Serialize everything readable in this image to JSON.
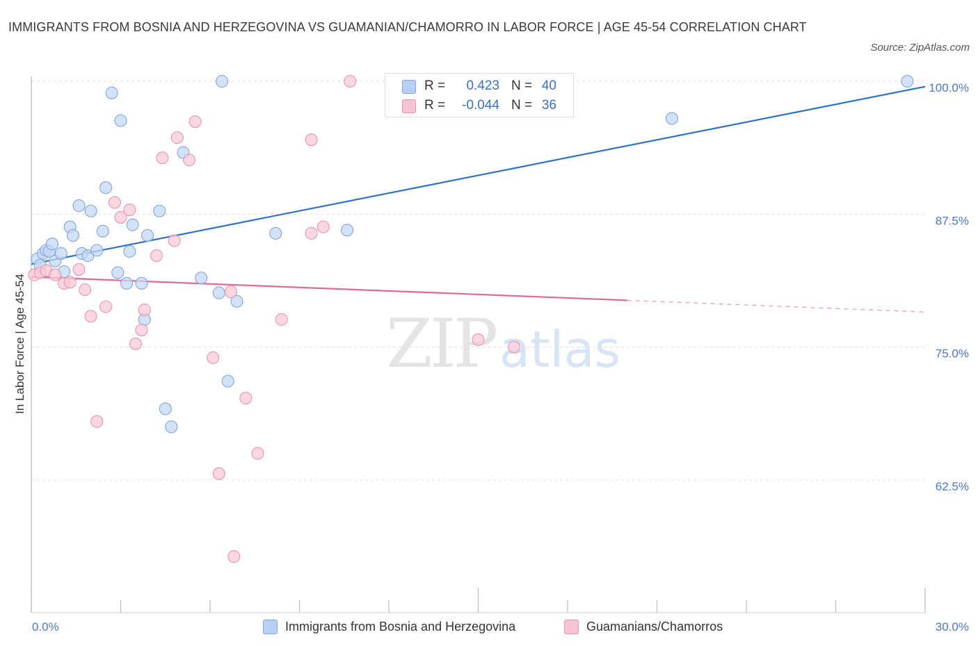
{
  "title": "IMMIGRANTS FROM BOSNIA AND HERZEGOVINA VS GUAMANIAN/CHAMORRO IN LABOR FORCE | AGE 45-54 CORRELATION CHART",
  "source": "Source: ZipAtlas.com",
  "watermark": {
    "zip": "ZIP",
    "atlas": "atlas"
  },
  "legend": {
    "rows": [
      {
        "r_label": "R =",
        "r_value": "0.423",
        "n_label": "N =",
        "n_value": "40",
        "color": "#b8d0f4",
        "border": "#7ea6e0"
      },
      {
        "r_label": "R =",
        "r_value": "-0.044",
        "n_label": "N =",
        "n_value": "36",
        "color": "#f7c4d3",
        "border": "#e894b0"
      }
    ]
  },
  "bottom_legend": [
    {
      "label": "Immigrants from Bosnia and Herzegovina",
      "color": "#b8d0f4",
      "border": "#7ea6e0"
    },
    {
      "label": "Guamanians/Chamorros",
      "color": "#f7c4d3",
      "border": "#e894b0"
    }
  ],
  "chart_data": {
    "type": "scatter",
    "title": "IMMIGRANTS FROM BOSNIA AND HERZEGOVINA VS GUAMANIAN/CHAMORRO IN LABOR FORCE | AGE 45-54 CORRELATION CHART",
    "xlabel": "",
    "ylabel": "In Labor Force | Age 45-54",
    "xlim": [
      0,
      30
    ],
    "ylim": [
      50,
      101
    ],
    "x_tick_labels": [
      "0.0%",
      "30.0%"
    ],
    "y_ticks": [
      62.5,
      75.0,
      87.5,
      100.0
    ],
    "y_tick_labels": [
      "62.5%",
      "75.0%",
      "87.5%",
      "100.0%"
    ],
    "grid": "horizontal dashed",
    "legend_position": "top-center",
    "series": [
      {
        "name": "Immigrants from Bosnia and Herzegovina",
        "color": "#7ea6e0",
        "fill": "#c5d8f5",
        "trend": {
          "x": [
            0,
            30
          ],
          "y": [
            82.8,
            99.5
          ],
          "color": "#2f6fcc",
          "style": "solid"
        },
        "points": [
          [
            0.2,
            83.3
          ],
          [
            0.3,
            82.7
          ],
          [
            0.4,
            83.8
          ],
          [
            0.5,
            84.1
          ],
          [
            0.6,
            84.0
          ],
          [
            0.7,
            84.7
          ],
          [
            0.8,
            83.1
          ],
          [
            1.0,
            83.8
          ],
          [
            1.1,
            82.1
          ],
          [
            1.3,
            86.3
          ],
          [
            1.4,
            85.5
          ],
          [
            1.6,
            88.3
          ],
          [
            1.7,
            83.8
          ],
          [
            1.9,
            83.6
          ],
          [
            2.0,
            87.8
          ],
          [
            2.2,
            84.1
          ],
          [
            2.4,
            85.9
          ],
          [
            2.5,
            90.0
          ],
          [
            2.7,
            98.9
          ],
          [
            2.9,
            82.0
          ],
          [
            3.0,
            96.3
          ],
          [
            3.2,
            81.0
          ],
          [
            3.3,
            84.0
          ],
          [
            3.4,
            86.5
          ],
          [
            3.7,
            81.0
          ],
          [
            3.8,
            77.6
          ],
          [
            3.9,
            85.5
          ],
          [
            4.3,
            87.8
          ],
          [
            4.5,
            69.2
          ],
          [
            4.7,
            67.5
          ],
          [
            5.1,
            93.3
          ],
          [
            5.7,
            81.5
          ],
          [
            6.3,
            80.1
          ],
          [
            6.4,
            100.0
          ],
          [
            6.6,
            71.8
          ],
          [
            6.9,
            79.3
          ],
          [
            8.2,
            85.7
          ],
          [
            10.6,
            86.0
          ],
          [
            21.5,
            96.5
          ],
          [
            29.4,
            100.0
          ]
        ]
      },
      {
        "name": "Guamanians/Chamorros",
        "color": "#e894b0",
        "fill": "#f8c9d7",
        "trend": {
          "x": [
            0,
            20
          ],
          "y": [
            81.6,
            79.4
          ],
          "color": "#e06a93",
          "style": "solid",
          "extension": {
            "x": [
              20,
              30
            ],
            "y": [
              79.4,
              78.3
            ],
            "style": "dashed"
          }
        },
        "points": [
          [
            0.1,
            81.8
          ],
          [
            0.3,
            82.0
          ],
          [
            0.5,
            82.2
          ],
          [
            0.8,
            81.8
          ],
          [
            1.1,
            81.0
          ],
          [
            1.3,
            81.1
          ],
          [
            1.6,
            82.3
          ],
          [
            1.8,
            80.4
          ],
          [
            2.0,
            77.9
          ],
          [
            2.2,
            68.0
          ],
          [
            2.5,
            78.8
          ],
          [
            2.8,
            88.6
          ],
          [
            3.0,
            87.2
          ],
          [
            3.3,
            87.9
          ],
          [
            3.5,
            75.3
          ],
          [
            3.7,
            76.6
          ],
          [
            3.8,
            78.5
          ],
          [
            4.2,
            83.6
          ],
          [
            4.4,
            92.8
          ],
          [
            4.8,
            85.0
          ],
          [
            4.9,
            94.7
          ],
          [
            5.3,
            92.6
          ],
          [
            5.5,
            96.2
          ],
          [
            6.1,
            74.0
          ],
          [
            6.3,
            63.1
          ],
          [
            6.7,
            80.2
          ],
          [
            6.8,
            55.3
          ],
          [
            7.2,
            70.2
          ],
          [
            7.6,
            65.0
          ],
          [
            8.4,
            77.6
          ],
          [
            9.4,
            85.7
          ],
          [
            9.4,
            94.5
          ],
          [
            9.8,
            86.3
          ],
          [
            10.7,
            100.0
          ],
          [
            15.0,
            75.7
          ],
          [
            16.2,
            75.0
          ]
        ]
      }
    ]
  }
}
